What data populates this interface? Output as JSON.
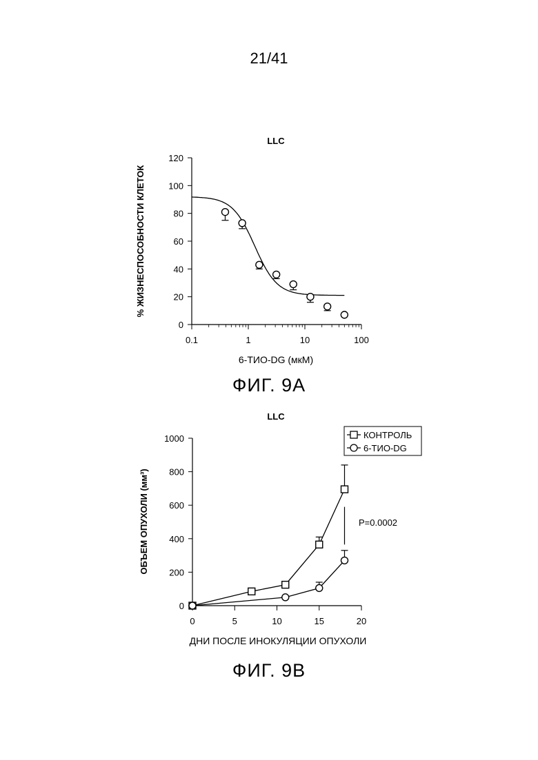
{
  "page": {
    "number": "21/41"
  },
  "figures": {
    "a": {
      "caption": "ФИГ. 9A"
    },
    "b": {
      "caption": "ФИГ. 9B"
    }
  },
  "chart_data": [
    {
      "type": "scatter",
      "title": "LLC",
      "xlabel": "6-ТИО-DG (мкМ)",
      "ylabel": "% ЖИЗНЕСПОСОБНОСТИ КЛЕТОК",
      "xscale": "log",
      "xlim": [
        0.1,
        100
      ],
      "ylim": [
        0,
        120
      ],
      "xticks": [
        "0.1",
        "1",
        "10",
        "100"
      ],
      "yticks": [
        "0",
        "20",
        "40",
        "60",
        "80",
        "100",
        "120"
      ],
      "grid": false,
      "points": [
        {
          "x": 0.39,
          "y": 81,
          "err": 6
        },
        {
          "x": 0.78,
          "y": 73,
          "err": 4
        },
        {
          "x": 1.56,
          "y": 43,
          "err": 3
        },
        {
          "x": 3.13,
          "y": 36,
          "err": 3
        },
        {
          "x": 6.25,
          "y": 29,
          "err": 4
        },
        {
          "x": 12.5,
          "y": 20,
          "err": 4
        },
        {
          "x": 25,
          "y": 13,
          "err": 3
        },
        {
          "x": 50,
          "y": 7,
          "err": 0
        }
      ],
      "fit": {
        "top": 92,
        "bottom": 21,
        "ic50": 1.3,
        "hill": 2.2,
        "x_range": [
          0.1,
          50
        ]
      }
    },
    {
      "type": "line",
      "title": "LLC",
      "xlabel": "ДНИ ПОСЛЕ ИНОКУЛЯЦИИ ОПУХОЛИ",
      "ylabel": "ОБЪЕМ ОПУХОЛИ (мм³)",
      "xlim": [
        0,
        20
      ],
      "ylim": [
        0,
        1000
      ],
      "xticks": [
        "0",
        "5",
        "10",
        "15",
        "20"
      ],
      "yticks": [
        "0",
        "200",
        "400",
        "600",
        "800",
        "1000"
      ],
      "grid": false,
      "legend_position": "top-right",
      "annotation": "P=0.0002",
      "series": [
        {
          "name": "КОНТРОЛЬ",
          "marker": "square",
          "x": [
            0,
            7,
            11,
            15,
            18
          ],
          "y": [
            0,
            85,
            125,
            365,
            695
          ],
          "err": [
            0,
            0,
            0,
            45,
            145
          ]
        },
        {
          "name": "6-ТИО-DG",
          "marker": "circle",
          "x": [
            0,
            11,
            15,
            18
          ],
          "y": [
            0,
            50,
            105,
            270
          ],
          "err": [
            0,
            0,
            35,
            60
          ]
        }
      ]
    }
  ]
}
